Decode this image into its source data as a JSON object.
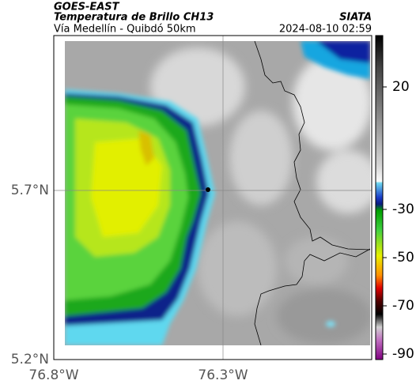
{
  "header": {
    "satellite": "GOES-EAST",
    "product": "Temperatura de Brillo CH13",
    "route": "Vía Medellín - Quibdó 50km",
    "source": "SIATA",
    "timestamp": "2024-08-10 02:59"
  },
  "map": {
    "lat_ticks": [
      "5.7°N",
      "5.2°N"
    ],
    "lon_ticks": [
      "76.8°W",
      "76.3°W"
    ]
  },
  "colorbar": {
    "ticks": [
      20,
      -30,
      -50,
      -70,
      -90
    ]
  }
}
